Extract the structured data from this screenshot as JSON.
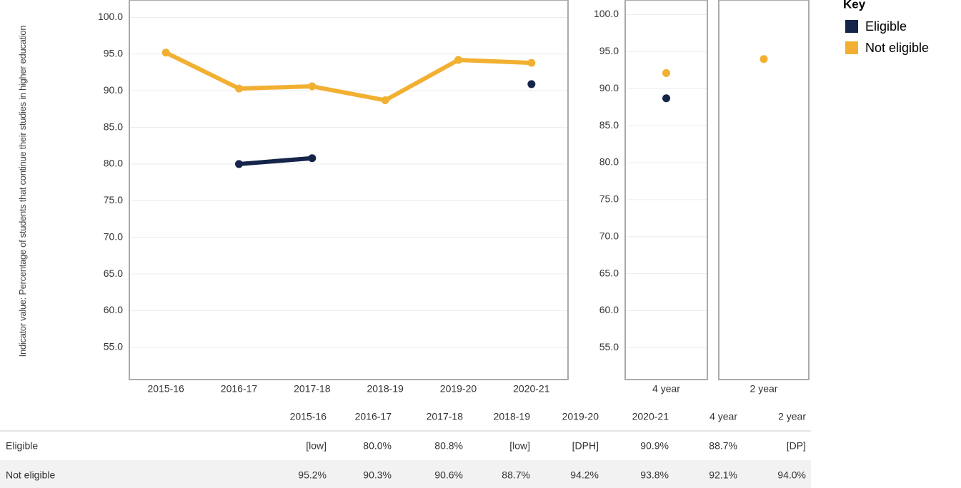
{
  "y_axis_label": "Indicator value: Percentage of students that continue their studies in higher education",
  "legend": {
    "title": "Key"
  },
  "chart_data": [
    {
      "type": "line",
      "categories": [
        "2015-16",
        "2016-17",
        "2017-18",
        "2018-19",
        "2019-20",
        "2020-21"
      ],
      "series": [
        {
          "name": "Eligible",
          "color": "#15254a",
          "values": [
            null,
            80.0,
            80.8,
            null,
            null,
            90.9
          ]
        },
        {
          "name": "Not eligible",
          "color": "#f2b032",
          "values": [
            95.2,
            90.3,
            90.6,
            88.7,
            94.2,
            93.8
          ]
        }
      ],
      "ylim": [
        50.6,
        101.6
      ],
      "yticks": [
        {
          "value": 55,
          "label": "55.0"
        },
        {
          "value": 60,
          "label": "60.0"
        },
        {
          "value": 65,
          "label": "65.0"
        },
        {
          "value": 70,
          "label": "70.0"
        },
        {
          "value": 75,
          "label": "75.0"
        },
        {
          "value": 80,
          "label": "80.0"
        },
        {
          "value": 85,
          "label": "85.0"
        },
        {
          "value": 90,
          "label": "90.0"
        },
        {
          "value": 95,
          "label": "95.0"
        },
        {
          "value": 100,
          "label": "100.0"
        }
      ],
      "grid": true
    },
    {
      "type": "scatter",
      "categories": [
        "4 year"
      ],
      "series": [
        {
          "name": "Eligible",
          "color": "#15254a",
          "values": [
            88.7
          ]
        },
        {
          "name": "Not eligible",
          "color": "#f2b032",
          "values": [
            92.1
          ]
        }
      ],
      "ylim": [
        50.7,
        101.2
      ],
      "yticks": [
        {
          "value": 55,
          "label": "55.0"
        },
        {
          "value": 60,
          "label": "60.0"
        },
        {
          "value": 65,
          "label": "65.0"
        },
        {
          "value": 70,
          "label": "70.0"
        },
        {
          "value": 75,
          "label": "75.0"
        },
        {
          "value": 80,
          "label": "80.0"
        },
        {
          "value": 85,
          "label": "85.0"
        },
        {
          "value": 90,
          "label": "90.0"
        },
        {
          "value": 95,
          "label": "95.0"
        },
        {
          "value": 100,
          "label": "100.0"
        }
      ],
      "grid": true
    },
    {
      "type": "scatter",
      "categories": [
        "2 year"
      ],
      "series": [
        {
          "name": "Eligible",
          "color": "#15254a",
          "values": [
            null
          ]
        },
        {
          "name": "Not eligible",
          "color": "#f2b032",
          "values": [
            94.0
          ]
        }
      ],
      "ylim": [
        50.7,
        101.2
      ],
      "grid": false
    }
  ],
  "table": {
    "columns": [
      "2015-16",
      "2016-17",
      "2017-18",
      "2018-19",
      "2019-20",
      "2020-21",
      "4 year",
      "2 year"
    ],
    "rows": [
      {
        "label": "Eligible",
        "cells": [
          "[low]",
          "80.0%",
          "80.8%",
          "[low]",
          "[DPH]",
          "90.9%",
          "88.7%",
          "[DP]"
        ]
      },
      {
        "label": "Not eligible",
        "cells": [
          "95.2%",
          "90.3%",
          "90.6%",
          "88.7%",
          "94.2%",
          "93.8%",
          "92.1%",
          "94.0%"
        ]
      }
    ]
  }
}
